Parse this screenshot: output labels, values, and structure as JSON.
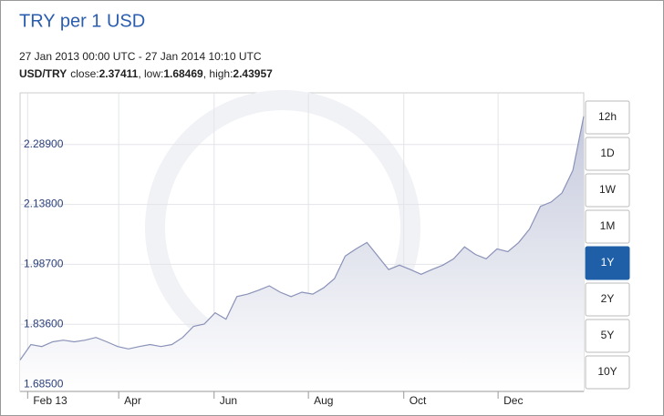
{
  "chart_data": {
    "type": "area",
    "title": "TRY per 1 USD",
    "subtitle": "27 Jan 2013 00:00 UTC - 27 Jan 2014 10:10 UTC",
    "pair": "USD/TRY",
    "stats": [
      {
        "label": "close:",
        "value": 2.37411
      },
      {
        "label": "low:",
        "value": 1.68469
      },
      {
        "label": "high:",
        "value": 2.43957
      }
    ],
    "separator": ", ",
    "x": [
      0,
      1,
      2,
      3,
      4,
      5,
      6,
      7,
      8,
      9,
      10,
      11,
      12,
      13,
      14,
      15,
      16,
      17,
      18,
      19,
      20,
      21,
      22,
      23,
      24,
      25,
      26,
      27,
      28,
      29,
      30,
      31,
      32,
      33,
      34,
      35,
      36,
      37,
      38,
      39,
      40,
      41,
      42,
      43,
      44,
      45,
      46,
      47,
      48,
      49,
      50,
      51,
      52
    ],
    "values": [
      1.746,
      1.785,
      1.78,
      1.792,
      1.796,
      1.792,
      1.796,
      1.803,
      1.792,
      1.78,
      1.774,
      1.78,
      1.785,
      1.78,
      1.785,
      1.803,
      1.831,
      1.837,
      1.865,
      1.849,
      1.906,
      1.912,
      1.922,
      1.933,
      1.917,
      1.906,
      1.917,
      1.912,
      1.928,
      1.951,
      2.008,
      2.026,
      2.042,
      2.008,
      1.974,
      1.985,
      1.974,
      1.962,
      1.974,
      1.985,
      2.001,
      2.031,
      2.012,
      2.001,
      2.026,
      2.019,
      2.042,
      2.076,
      2.133,
      2.144,
      2.167,
      2.224,
      2.36
    ],
    "color": "#8a92b8",
    "xlim": [
      0,
      52
    ],
    "xticks": [
      {
        "value": 0.7,
        "label": "Feb 13"
      },
      {
        "value": 9.1,
        "label": "Apr"
      },
      {
        "value": 17.9,
        "label": "Jun"
      },
      {
        "value": 26.6,
        "label": "Aug"
      },
      {
        "value": 35.4,
        "label": "Oct"
      },
      {
        "value": 44.1,
        "label": "Dec"
      }
    ],
    "ylim": [
      1.667,
      2.419
    ],
    "yticks": [
      {
        "value": 1.685,
        "label": "1.68500"
      },
      {
        "value": 1.836,
        "label": "1.83600"
      },
      {
        "value": 1.987,
        "label": "1.98700"
      },
      {
        "value": 2.138,
        "label": "2.13800"
      },
      {
        "value": 2.289,
        "label": "2.28900"
      }
    ],
    "grid": true,
    "ranges": [
      "12h",
      "1D",
      "1W",
      "1M",
      "1Y",
      "2Y",
      "5Y",
      "10Y"
    ],
    "selected_range": "1Y"
  }
}
